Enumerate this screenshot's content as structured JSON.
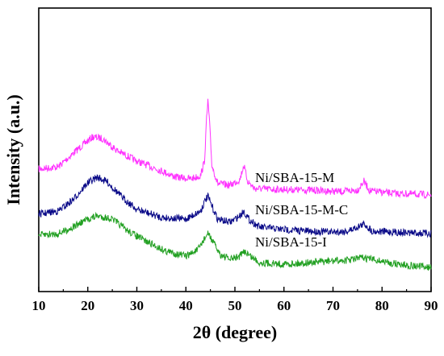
{
  "chart_data": {
    "type": "line",
    "title": "",
    "xlabel": "2θ (degree)",
    "ylabel": "Intensity (a.u.)",
    "xlim": [
      10,
      90
    ],
    "xticks": [
      10,
      20,
      30,
      40,
      50,
      60,
      70,
      80,
      90
    ],
    "grid": false,
    "legend": "inline labels near the curves, right side",
    "series": [
      {
        "name": "Ni/SBA-15-M",
        "color": "#ff33ff",
        "points": [
          [
            10,
            210
          ],
          [
            14,
            207
          ],
          [
            18,
            185
          ],
          [
            21,
            170
          ],
          [
            23,
            172
          ],
          [
            26,
            187
          ],
          [
            30,
            200
          ],
          [
            35,
            212
          ],
          [
            38,
            220
          ],
          [
            41,
            222
          ],
          [
            43,
            218
          ],
          [
            43.8,
            200
          ],
          [
            44.2,
            150
          ],
          [
            44.5,
            125
          ],
          [
            44.8,
            150
          ],
          [
            45.3,
            205
          ],
          [
            46.5,
            228
          ],
          [
            49,
            230
          ],
          [
            51,
            223
          ],
          [
            51.8,
            205
          ],
          [
            52.6,
            225
          ],
          [
            54,
            234
          ],
          [
            58,
            235
          ],
          [
            65,
            236
          ],
          [
            72,
            238
          ],
          [
            75,
            236
          ],
          [
            76.3,
            225
          ],
          [
            77.5,
            237
          ],
          [
            82,
            240
          ],
          [
            86,
            241
          ],
          [
            90,
            242
          ]
        ]
      },
      {
        "name": "Ni/SBA-15-M-C",
        "color": "#0a0a88",
        "points": [
          [
            10,
            266
          ],
          [
            14,
            262
          ],
          [
            17,
            248
          ],
          [
            20,
            227
          ],
          [
            22,
            220
          ],
          [
            24,
            226
          ],
          [
            27,
            245
          ],
          [
            30,
            260
          ],
          [
            35,
            270
          ],
          [
            40,
            272
          ],
          [
            43,
            262
          ],
          [
            44,
            248
          ],
          [
            44.5,
            244
          ],
          [
            45.3,
            256
          ],
          [
            46.5,
            272
          ],
          [
            49,
            276
          ],
          [
            51,
            268
          ],
          [
            51.8,
            262
          ],
          [
            52.8,
            272
          ],
          [
            55,
            282
          ],
          [
            60,
            285
          ],
          [
            65,
            287
          ],
          [
            70,
            288
          ],
          [
            73,
            287
          ],
          [
            76.4,
            278
          ],
          [
            78,
            287
          ],
          [
            82,
            288
          ],
          [
            86,
            289
          ],
          [
            90,
            290
          ]
        ]
      },
      {
        "name": "Ni/SBA-15-I",
        "color": "#22a022",
        "points": [
          [
            10,
            292
          ],
          [
            14,
            290
          ],
          [
            17,
            282
          ],
          [
            20,
            272
          ],
          [
            22,
            268
          ],
          [
            25,
            272
          ],
          [
            28,
            286
          ],
          [
            32,
            300
          ],
          [
            36,
            312
          ],
          [
            40,
            318
          ],
          [
            42.5,
            310
          ],
          [
            44,
            294
          ],
          [
            44.6,
            290
          ],
          [
            45.5,
            300
          ],
          [
            47,
            316
          ],
          [
            49,
            322
          ],
          [
            51,
            318
          ],
          [
            52,
            312
          ],
          [
            53.2,
            318
          ],
          [
            55,
            326
          ],
          [
            60,
            328
          ],
          [
            65,
            326
          ],
          [
            70,
            324
          ],
          [
            73,
            323
          ],
          [
            76,
            320
          ],
          [
            78,
            322
          ],
          [
            82,
            327
          ],
          [
            86,
            330
          ],
          [
            90,
            332
          ]
        ]
      }
    ]
  }
}
